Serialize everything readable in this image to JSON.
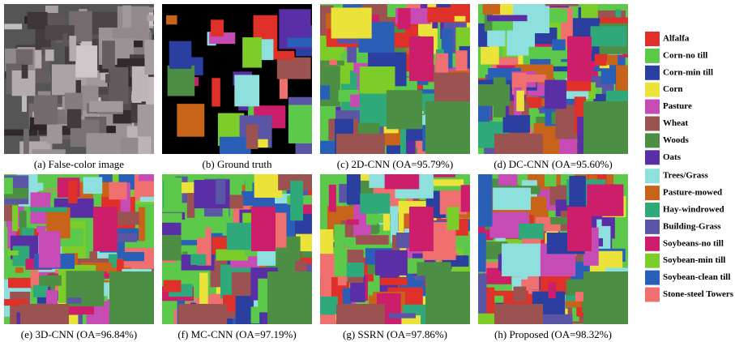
{
  "panels": [
    {
      "caption": "(a) False-color image"
    },
    {
      "caption": "(b) Ground truth"
    },
    {
      "caption": "(c) 2D-CNN (OA=95.79%)"
    },
    {
      "caption": "(d) DC-CNN (OA=95.60%)"
    },
    {
      "caption": "(e) 3D-CNN (OA=96.84%)"
    },
    {
      "caption": "(f) MC-CNN (OA=97.19%)"
    },
    {
      "caption": "(g) SSRN (OA=97.86%)"
    },
    {
      "caption": "(h) Proposed (OA=98.32%)"
    }
  ],
  "legend": [
    {
      "label": "Alfalfa",
      "color": "#e0302a"
    },
    {
      "label": "Corn-no till",
      "color": "#5cc94a"
    },
    {
      "label": "Corn-min till",
      "color": "#2a3fa0"
    },
    {
      "label": "Corn",
      "color": "#ece33a"
    },
    {
      "label": "Pasture",
      "color": "#c64bb5"
    },
    {
      "label": "Wheat",
      "color": "#9a5350"
    },
    {
      "label": "Woods",
      "color": "#4c8f44"
    },
    {
      "label": "Oats",
      "color": "#5a2fa5"
    },
    {
      "label": "Trees/Grass",
      "color": "#8de0de"
    },
    {
      "label": "Pasture-mowed",
      "color": "#c8641a"
    },
    {
      "label": "Hay-windrowed",
      "color": "#2fa87a"
    },
    {
      "label": "Building-Grass",
      "color": "#5b55a5"
    },
    {
      "label": "Soybeans-no till",
      "color": "#cc1e6a"
    },
    {
      "label": "Soybean-min till",
      "color": "#7ccc2a"
    },
    {
      "label": "Soybean-clean till",
      "color": "#2a5fb8"
    },
    {
      "label": "Stone-steel Towers",
      "color": "#f07070"
    }
  ]
}
